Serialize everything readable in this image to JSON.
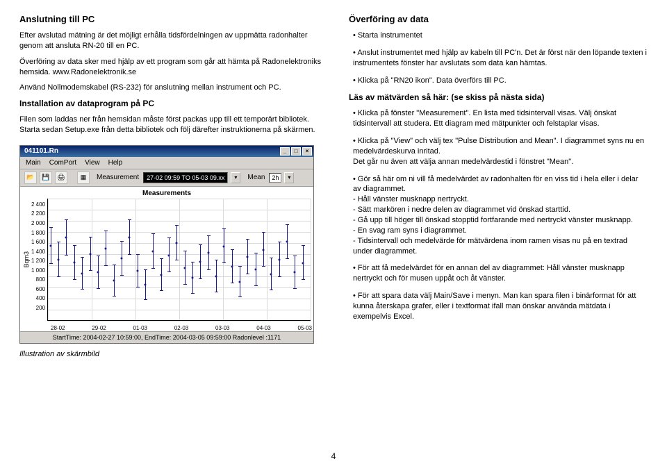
{
  "left": {
    "h_connect": "Anslutning till PC",
    "p1": "Efter avslutad mätning är det möjligt erhålla tidsfördelningen av uppmätta radonhalter genom att ansluta RN-20 till en PC.",
    "p2": "Överföring av data sker med hjälp av ett program som går att hämta på Radonelektroniks hemsida. www.Radonelektronik.se",
    "p3": "Använd Nollmodemskabel (RS-232) för anslutning mellan instrument och PC.",
    "h_install": "Installation av dataprogram på PC",
    "p4": "Filen som laddas ner från hemsidan måste först packas upp till ett temporärt bibliotek. Starta sedan Setup.exe från detta bibliotek och följ därefter instruktionerna på skärmen.",
    "caption": "Illustration av skärmbild"
  },
  "right": {
    "h_transfer": "Överföring av data",
    "li1": "Starta instrumentet",
    "li2": "Anslut instrumentet med hjälp av kabeln till PC'n. Det är först när den löpande texten i instrumentets fönster har avslutats som data kan hämtas.",
    "li3": "Klicka på \"RN20 ikon\". Data överförs till PC.",
    "h_read": "Läs av mätvärden så här: (se skiss på nästa sida)",
    "li4": "Klicka på fönster \"Measurement\". En lista med tidsintervall visas. Välj önskat tidsintervall att studera. Ett diagram med mätpunkter och felstaplar visas.",
    "li5": "Klicka på \"View\" och välj tex \"Pulse Distribution and Mean\". I diagrammet syns nu en medelvärdeskurva inritad.\nDet går nu även att välja annan medelvärdestid i fönstret \"Mean\".",
    "li6": "Gör så här om ni vill få medelvärdet av radonhalten för en viss tid i hela eller i delar av diagrammet.\n- Håll vänster musknapp nertryckt.\n- Sätt markören i nedre delen av diagrammet vid önskad starttid.\n- Gå upp till höger till önskad stopptid fortfarande med nertryckt vänster musknapp.\n- En svag ram syns i diagrammet.\n- Tidsintervall och medelvärde för mätvärdena inom ramen visas nu på en textrad under diagrammet.",
    "li7": "För att få medelvärdet för en annan del av diagrammet: Håll vänster musknapp nertryckt och för musen uppåt och åt vänster.",
    "li8": "För att spara data välj Main/Save i menyn. Man kan spara filen i binärformat för att kunna återskapa grafer, eller i textformat ifall man önskar använda mätdata i exempelvis Excel."
  },
  "app": {
    "title": "041101.Rn",
    "menu": {
      "m1": "Main",
      "m2": "ComPort",
      "m3": "View",
      "m4": "Help"
    },
    "toolbar": {
      "measurement_label": "Measurement",
      "measurement_value": "27-02 09:59 TO 05-03 09.xx",
      "mean_label": "Mean",
      "mean_value": "2h"
    },
    "chart": {
      "title": "Measurements",
      "ylabel": "Bqm3",
      "yticks": [
        "2 400",
        "2 200",
        "2 000",
        "1 800",
        "1 600",
        "1 400",
        "1 200",
        "1 000",
        "800",
        "600",
        "400",
        "200"
      ],
      "xticks": [
        "28-02",
        "29-02",
        "01-03",
        "02-03",
        "03-03",
        "04-03",
        "05-03"
      ],
      "ylim_min": 200,
      "ylim_max": 2400,
      "color_line": "#1a1a8c",
      "color_grid": "#d9d9d9",
      "background": "#ffffff",
      "points": [
        {
          "x": 1,
          "y": 1550,
          "lo": 1220,
          "hi": 1890
        },
        {
          "x": 4,
          "y": 1300,
          "lo": 980,
          "hi": 1620
        },
        {
          "x": 7,
          "y": 1700,
          "lo": 1380,
          "hi": 2030
        },
        {
          "x": 10,
          "y": 1250,
          "lo": 940,
          "hi": 1560
        },
        {
          "x": 13,
          "y": 1050,
          "lo": 760,
          "hi": 1350
        },
        {
          "x": 16,
          "y": 1400,
          "lo": 1100,
          "hi": 1710
        },
        {
          "x": 19,
          "y": 1080,
          "lo": 780,
          "hi": 1380
        },
        {
          "x": 22,
          "y": 1500,
          "lo": 1190,
          "hi": 1820
        },
        {
          "x": 25,
          "y": 920,
          "lo": 640,
          "hi": 1210
        },
        {
          "x": 28,
          "y": 1320,
          "lo": 1010,
          "hi": 1640
        },
        {
          "x": 31,
          "y": 1700,
          "lo": 1390,
          "hi": 2020
        },
        {
          "x": 34,
          "y": 1100,
          "lo": 800,
          "hi": 1400
        },
        {
          "x": 37,
          "y": 850,
          "lo": 580,
          "hi": 1130
        },
        {
          "x": 40,
          "y": 1450,
          "lo": 1140,
          "hi": 1770
        },
        {
          "x": 43,
          "y": 1020,
          "lo": 730,
          "hi": 1320
        },
        {
          "x": 46,
          "y": 1380,
          "lo": 1070,
          "hi": 1700
        },
        {
          "x": 49,
          "y": 1600,
          "lo": 1290,
          "hi": 1920
        },
        {
          "x": 52,
          "y": 1150,
          "lo": 850,
          "hi": 1460
        },
        {
          "x": 55,
          "y": 970,
          "lo": 690,
          "hi": 1260
        },
        {
          "x": 58,
          "y": 1260,
          "lo": 950,
          "hi": 1580
        },
        {
          "x": 61,
          "y": 1420,
          "lo": 1110,
          "hi": 1740
        },
        {
          "x": 64,
          "y": 1000,
          "lo": 710,
          "hi": 1300
        },
        {
          "x": 67,
          "y": 1540,
          "lo": 1230,
          "hi": 1860
        },
        {
          "x": 70,
          "y": 1180,
          "lo": 880,
          "hi": 1490
        },
        {
          "x": 73,
          "y": 900,
          "lo": 620,
          "hi": 1190
        },
        {
          "x": 76,
          "y": 1350,
          "lo": 1040,
          "hi": 1670
        },
        {
          "x": 79,
          "y": 1120,
          "lo": 820,
          "hi": 1430
        },
        {
          "x": 82,
          "y": 1480,
          "lo": 1170,
          "hi": 1800
        },
        {
          "x": 85,
          "y": 1040,
          "lo": 750,
          "hi": 1340
        },
        {
          "x": 88,
          "y": 1300,
          "lo": 990,
          "hi": 1620
        },
        {
          "x": 91,
          "y": 1620,
          "lo": 1310,
          "hi": 1940
        },
        {
          "x": 94,
          "y": 1080,
          "lo": 780,
          "hi": 1380
        },
        {
          "x": 97,
          "y": 1240,
          "lo": 930,
          "hi": 1560
        }
      ]
    },
    "statusbar": "StartTime: 2004-02-27 10:59:00, EndTime: 2004-03-05 09:59:00 Radonlevel :1171"
  },
  "pagenum": "4"
}
